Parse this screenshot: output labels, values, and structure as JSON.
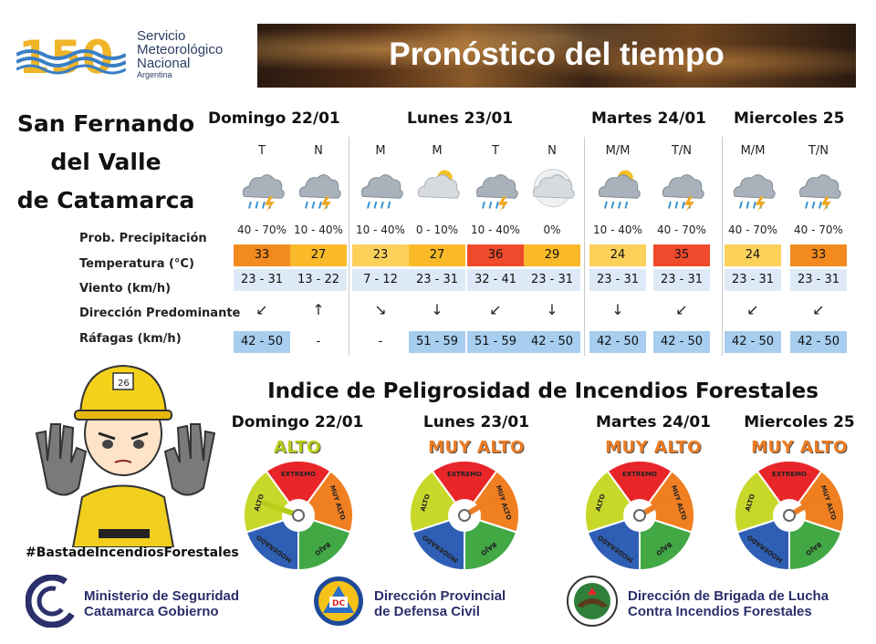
{
  "header": {
    "org_line1": "Servicio",
    "org_line2": "Meteorológico",
    "org_line3": "Nacional",
    "org_line4": "Argentina",
    "anniversary": "150",
    "title": "Pronóstico del tiempo"
  },
  "location": {
    "line1": "San Fernando",
    "line2": "del Valle",
    "line3": "de Catamarca"
  },
  "days": [
    {
      "label": "Domingo 22/01"
    },
    {
      "label": "Lunes 23/01"
    },
    {
      "label": "Martes 24/01"
    },
    {
      "label": "Miercoles 25"
    }
  ],
  "row_labels": {
    "prob": "Prob. Precipitación",
    "temp": "Temperatura (°C)",
    "wind": "Viento (km/h)",
    "dir": "Dirección Predominante",
    "gust": "Ráfagas (km/h)"
  },
  "columns": [
    {
      "period": "T",
      "icon": "storm-icon",
      "prob": "40 - 70%",
      "temp": "33",
      "temp_color": "#f28a1e",
      "wind": "23 - 31",
      "dir": "↙",
      "gust": "42 - 50",
      "gust_blue": true
    },
    {
      "period": "N",
      "icon": "storm-icon",
      "prob": "10 - 40%",
      "temp": "27",
      "temp_color": "#f9b928",
      "wind": "13 - 22",
      "dir": "↑",
      "gust": "-",
      "gust_blue": false
    },
    {
      "period": "M",
      "icon": "rain-icon",
      "prob": "10 - 40%",
      "temp": "23",
      "temp_color": "#fbd15a",
      "wind": "7 - 12",
      "dir": "↘",
      "gust": "-",
      "gust_blue": false
    },
    {
      "period": "M",
      "icon": "partly-cloudy-icon",
      "prob": "0 - 10%",
      "temp": "27",
      "temp_color": "#f9b928",
      "wind": "23 - 31",
      "dir": "↓",
      "gust": "51 - 59",
      "gust_blue": true
    },
    {
      "period": "T",
      "icon": "storm-icon",
      "prob": "10 - 40%",
      "temp": "36",
      "temp_color": "#ef4a2c",
      "wind": "32 - 41",
      "dir": "↙",
      "gust": "51 - 59",
      "gust_blue": true
    },
    {
      "period": "N",
      "icon": "cloudy-night-icon",
      "prob": "0%",
      "temp": "29",
      "temp_color": "#f9b928",
      "wind": "23 - 31",
      "dir": "↓",
      "gust": "42 - 50",
      "gust_blue": true
    },
    {
      "period": "M/M",
      "icon": "sun-rain-icon",
      "prob": "10 - 40%",
      "temp": "24",
      "temp_color": "#fbd15a",
      "wind": "23 - 31",
      "dir": "↓",
      "gust": "42 - 50",
      "gust_blue": true
    },
    {
      "period": "T/N",
      "icon": "storm-icon",
      "prob": "40 - 70%",
      "temp": "35",
      "temp_color": "#ef4a2c",
      "wind": "23 - 31",
      "dir": "↙",
      "gust": "42 - 50",
      "gust_blue": true
    },
    {
      "period": "M/M",
      "icon": "storm-icon",
      "prob": "40 - 70%",
      "temp": "24",
      "temp_color": "#fbd15a",
      "wind": "23 - 31",
      "dir": "↙",
      "gust": "42 - 50",
      "gust_blue": true
    },
    {
      "period": "T/N",
      "icon": "storm-icon",
      "prob": "40 - 70%",
      "temp": "33",
      "temp_color": "#f28a1e",
      "wind": "23 - 31",
      "dir": "↙",
      "gust": "42 - 50",
      "gust_blue": true
    }
  ],
  "fire": {
    "title": "Indice de Peligrosidad de Incendios Forestales",
    "segment_labels": [
      "EXTREMO",
      "MUY ALTO",
      "BAJO",
      "MODERADO",
      "ALTO"
    ],
    "segment_colors": [
      "#e8262a",
      "#f07f22",
      "#41a844",
      "#2f5fb5",
      "#c7d82a"
    ],
    "days": [
      {
        "label": "Domingo 22/01",
        "level": "ALTO",
        "level_color": "#b8cc1a",
        "needle": "alto"
      },
      {
        "label": "Lunes 23/01",
        "level": "MUY ALTO",
        "level_color": "#ee7c22",
        "needle": "muy alto"
      },
      {
        "label": "Martes 24/01",
        "level": "MUY ALTO",
        "level_color": "#ee7c22",
        "needle": "muy alto"
      },
      {
        "label": "Miercoles 25",
        "level": "MUY ALTO",
        "level_color": "#ee7c22",
        "needle": "muy alto"
      }
    ],
    "hashtag": "#BastadeIncendiosForestales",
    "helmet_number": "26"
  },
  "footer": {
    "ministry_line1": "Ministerio de Seguridad",
    "ministry_line2": "Catamarca Gobierno",
    "dc_line1": "Dirección Provincial",
    "dc_line2": "de Defensa Civil",
    "dc_badge": "DC",
    "brigade_line1": "Dirección de Brigada de Lucha",
    "brigade_line2": "Contra Incendios Forestales"
  }
}
